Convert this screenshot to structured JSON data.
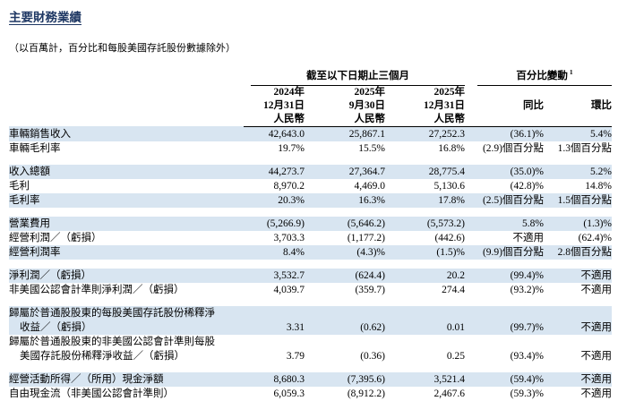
{
  "page": {
    "title": "主要財務業績",
    "note": "（以百萬計，百分比和每股美國存託股份數據除外）"
  },
  "table": {
    "period_header": "截至以下日期止三個月",
    "pct_header": "百分比變動",
    "pct_header_footnote": "1",
    "date_columns": [
      {
        "year": "2024年",
        "date": "12月31日",
        "currency": "人民幣"
      },
      {
        "year": "2025年",
        "date": "9月30日",
        "currency": "人民幣"
      },
      {
        "year": "2025年",
        "date": "12月31日",
        "currency": "人民幣"
      }
    ],
    "pct_columns": [
      "同比",
      "環比"
    ],
    "sections": [
      {
        "rows": [
          {
            "label": "車輛銷售收入",
            "values": [
              "42,643.0",
              "25,867.1",
              "27,252.3",
              "(36.1)%",
              "5.4%"
            ]
          },
          {
            "label": "車輛毛利率",
            "values": [
              "19.7%",
              "15.5%",
              "16.8%",
              "(2.9)個百分點",
              "1.3個百分點"
            ]
          }
        ]
      },
      {
        "rows": [
          {
            "label": "收入總額",
            "values": [
              "44,273.7",
              "27,364.7",
              "28,775.4",
              "(35.0)%",
              "5.2%"
            ]
          },
          {
            "label": "毛利",
            "values": [
              "8,970.2",
              "4,469.0",
              "5,130.6",
              "(42.8)%",
              "14.8%"
            ]
          },
          {
            "label": "毛利率",
            "values": [
              "20.3%",
              "16.3%",
              "17.8%",
              "(2.5)個百分點",
              "1.5個百分點"
            ]
          }
        ]
      },
      {
        "rows": [
          {
            "label": "營業費用",
            "values": [
              "(5,266.9)",
              "(5,646.2)",
              "(5,573.2)",
              "5.8%",
              "(1.3)%"
            ]
          },
          {
            "label": "經營利潤／（虧損）",
            "values": [
              "3,703.3",
              "(1,177.2)",
              "(442.6)",
              "不適用",
              "(62.4)%"
            ]
          },
          {
            "label": "經營利潤率",
            "values": [
              "8.4%",
              "(4.3)%",
              "(1.5)%",
              "(9.9)個百分點",
              "2.8個百分點"
            ]
          }
        ]
      },
      {
        "rows": [
          {
            "label": "淨利潤／（虧損）",
            "values": [
              "3,532.7",
              "(624.4)",
              "20.2",
              "(99.4)%",
              "不適用"
            ]
          },
          {
            "label": "非美國公認會計準則淨利潤／（虧損）",
            "values": [
              "4,039.7",
              "(359.7)",
              "274.4",
              "(93.2)%",
              "不適用"
            ]
          }
        ]
      },
      {
        "rows": [
          {
            "label": "歸屬於普通股股東的每股美國存託股份稀釋淨",
            "label2": "收益／（虧損）",
            "values": [
              "3.31",
              "(0.62)",
              "0.01",
              "(99.7)%",
              "不適用"
            ]
          },
          {
            "label": "歸屬於普通股股東的非美國公認會計準則每股",
            "label2": "美國存託股份稀釋淨收益／（虧損）",
            "values": [
              "3.79",
              "(0.36)",
              "0.25",
              "(93.4)%",
              "不適用"
            ]
          }
        ]
      },
      {
        "rows": [
          {
            "label": "經營活動所得／（所用）現金淨額",
            "values": [
              "8,680.3",
              "(7,395.6)",
              "3,521.4",
              "(59.4)%",
              "不適用"
            ]
          },
          {
            "label": "自由現金流（非美國公認會計準則）",
            "values": [
              "6,059.3",
              "(8,912.2)",
              "2,467.6",
              "(59.3)%",
              "不適用"
            ]
          }
        ]
      }
    ]
  },
  "colors": {
    "row_shade": "#d8e5f1",
    "title": "#1f3864"
  }
}
